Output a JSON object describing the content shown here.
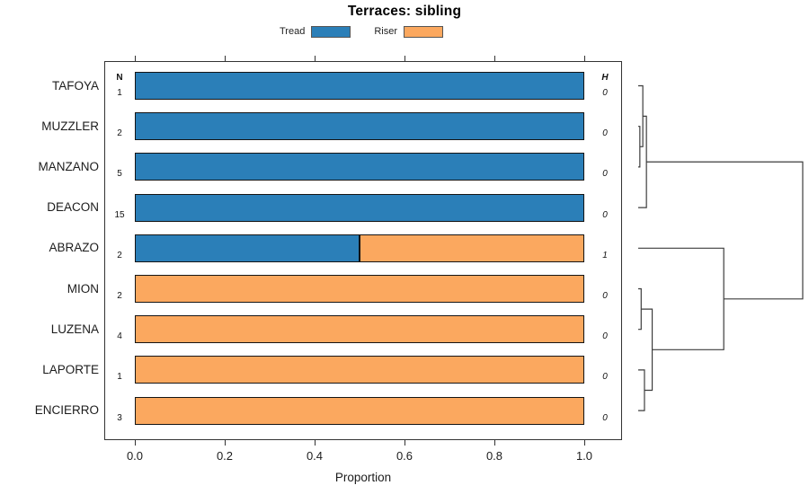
{
  "chart_data": {
    "type": "bar",
    "orientation": "horizontal",
    "stacked": true,
    "title": "Terraces: sibling",
    "xlabel": "Proportion",
    "xlim": [
      0.0,
      1.0
    ],
    "xticks": [
      0.0,
      0.2,
      0.4,
      0.6,
      0.8,
      1.0
    ],
    "grid": false,
    "legend_position": "top",
    "categories": [
      "TAFOYA",
      "MUZZLER",
      "MANZANO",
      "DEACON",
      "ABRAZO",
      "MION",
      "LUZENA",
      "LAPORTE",
      "ENCIERRO"
    ],
    "series": [
      {
        "name": "Tread",
        "color": "#2b7fb8",
        "values": [
          1.0,
          1.0,
          1.0,
          1.0,
          0.5,
          0.0,
          0.0,
          0.0,
          0.0
        ]
      },
      {
        "name": "Riser",
        "color": "#fba85f",
        "values": [
          0.0,
          0.0,
          0.0,
          0.0,
          0.5,
          1.0,
          1.0,
          1.0,
          1.0
        ]
      }
    ],
    "n_column": {
      "header": "N",
      "values": [
        1,
        2,
        5,
        15,
        2,
        2,
        4,
        1,
        3
      ]
    },
    "h_column": {
      "header": "H",
      "values": [
        0,
        0,
        0,
        0,
        1,
        0,
        0,
        0,
        0
      ]
    },
    "dendrogram": {
      "note": "merges use R convention: negative = leaf index (1-based, top to bottom), positive = earlier merge index",
      "merges": [
        {
          "a": -2,
          "b": -3,
          "h": 0.01
        },
        {
          "a": -1,
          "b": 1,
          "h": 0.028
        },
        {
          "a": 2,
          "b": -4,
          "h": 0.05
        },
        {
          "a": -6,
          "b": -7,
          "h": 0.018
        },
        {
          "a": -8,
          "b": -9,
          "h": 0.038
        },
        {
          "a": 4,
          "b": 5,
          "h": 0.085
        },
        {
          "a": -5,
          "b": 6,
          "h": 0.52
        },
        {
          "a": 3,
          "b": 7,
          "h": 1.0
        }
      ]
    },
    "colors": {
      "tread": "#2b7fb8",
      "riser": "#fba85f",
      "bar_border": "#141414",
      "dendrogram_line": "#3d3d3d",
      "axis": "#333333"
    }
  }
}
